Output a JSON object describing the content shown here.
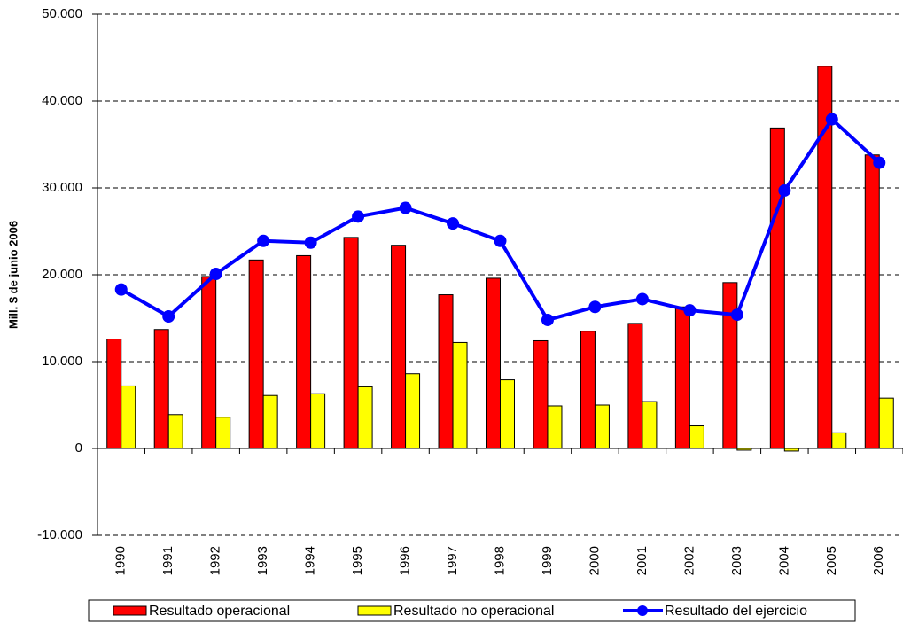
{
  "chart_data": {
    "type": "bar-line",
    "y_label": "Mill. $ de junio 2006",
    "categories": [
      "1990",
      "1991",
      "1992",
      "1993",
      "1994",
      "1995",
      "1996",
      "1997",
      "1998",
      "1999",
      "2000",
      "2001",
      "2002",
      "2003",
      "2004",
      "2005",
      "2006"
    ],
    "series": [
      {
        "name": "Resultado operacional",
        "type": "bar",
        "color": "#ff0000",
        "values": [
          12600,
          13700,
          19800,
          21700,
          22200,
          24300,
          23400,
          17700,
          19600,
          12400,
          13500,
          14400,
          16300,
          19100,
          36900,
          44000,
          33800
        ]
      },
      {
        "name": "Resultado no operacional",
        "type": "bar",
        "color": "#ffff00",
        "values": [
          7200,
          3900,
          3600,
          6100,
          6300,
          7100,
          8600,
          12200,
          7900,
          4900,
          5000,
          5400,
          2600,
          -200,
          -300,
          1800,
          5800
        ]
      },
      {
        "name": "Resultado del ejercicio",
        "type": "line",
        "color": "#0000ff",
        "values": [
          18300,
          15200,
          20100,
          23900,
          23700,
          26700,
          27700,
          25900,
          23900,
          14800,
          16300,
          17200,
          15900,
          15400,
          29700,
          37900,
          32900
        ]
      }
    ],
    "ylim": [
      -10000,
      50000
    ],
    "yticks": [
      {
        "value": -10000,
        "label": "-10.000"
      },
      0,
      {
        "value": 10000,
        "label": "10.000"
      },
      {
        "value": 20000,
        "label": "20.000"
      },
      {
        "value": 30000,
        "label": "30.000"
      },
      {
        "value": 40000,
        "label": "40.000"
      },
      {
        "value": 50000,
        "label": "50.000"
      }
    ],
    "grid": true,
    "legend": "bottom"
  }
}
